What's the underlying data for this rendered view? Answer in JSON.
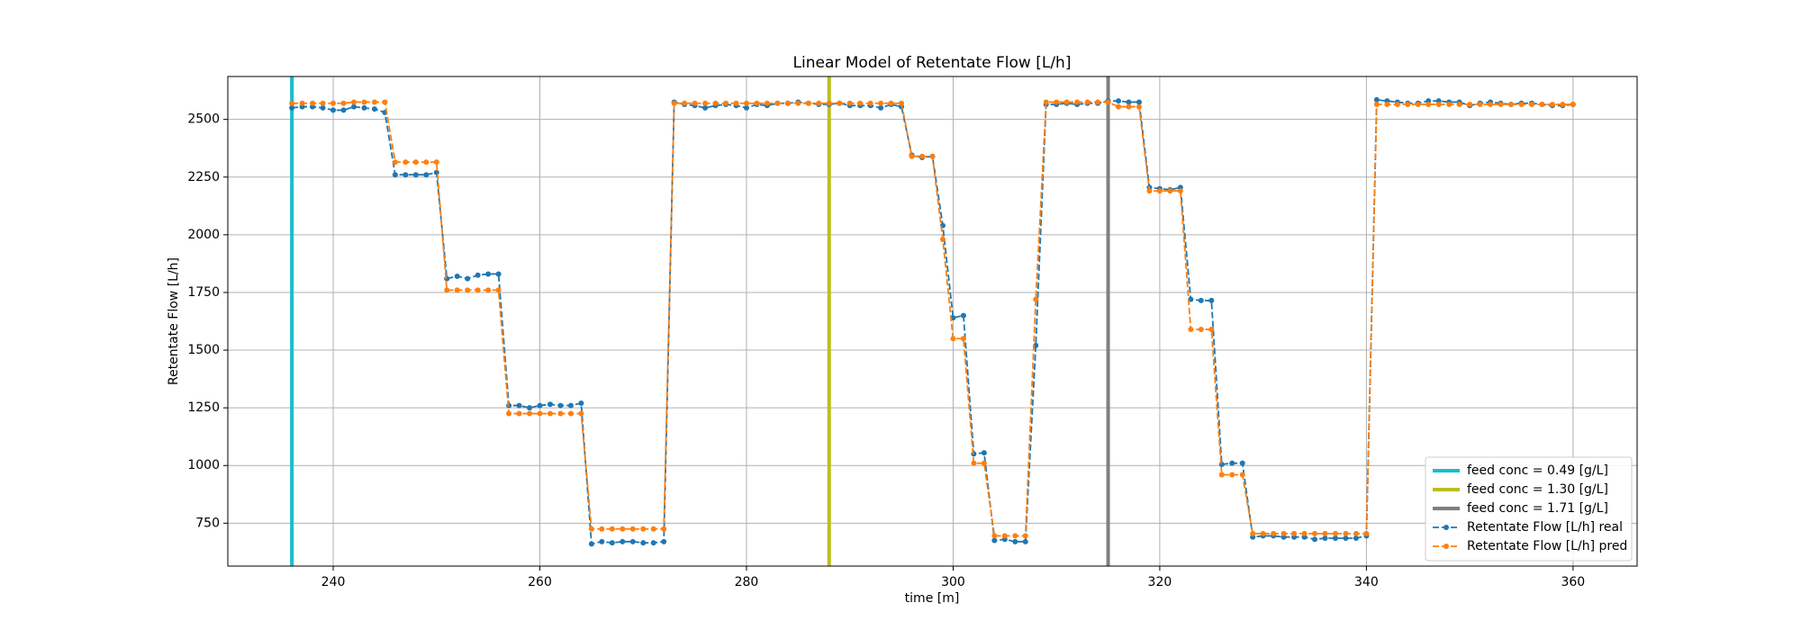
{
  "chart_data": {
    "type": "line",
    "title": "Linear Model of Retentate Flow [L/h]",
    "xlabel": "time [m]",
    "ylabel": "Retentate Flow [L/h]",
    "x": [
      236,
      237,
      238,
      239,
      240,
      241,
      242,
      243,
      244,
      245,
      246,
      247,
      248,
      249,
      250,
      251,
      252,
      253,
      254,
      255,
      256,
      257,
      258,
      259,
      260,
      261,
      262,
      263,
      264,
      265,
      266,
      267,
      268,
      269,
      270,
      271,
      272,
      273,
      274,
      275,
      276,
      277,
      278,
      279,
      280,
      281,
      282,
      283,
      284,
      285,
      286,
      287,
      288,
      289,
      290,
      291,
      292,
      293,
      294,
      295,
      296,
      297,
      298,
      299,
      300,
      301,
      302,
      303,
      304,
      305,
      306,
      307,
      308,
      309,
      310,
      311,
      312,
      313,
      314,
      315,
      316,
      317,
      318,
      319,
      320,
      321,
      322,
      323,
      324,
      325,
      326,
      327,
      328,
      329,
      330,
      331,
      332,
      333,
      334,
      335,
      336,
      337,
      338,
      339,
      340,
      341,
      342,
      343,
      344,
      345,
      346,
      347,
      348,
      349,
      350,
      351,
      352,
      353,
      354,
      355,
      356,
      357,
      358,
      359,
      360
    ],
    "series": [
      {
        "name": "Retentate Flow [L/h] real",
        "color": "#1f77b4",
        "values": [
          2550,
          2555,
          2555,
          2550,
          2540,
          2540,
          2555,
          2550,
          2545,
          2530,
          2260,
          2260,
          2260,
          2260,
          2270,
          1810,
          1820,
          1810,
          1825,
          1830,
          1830,
          1260,
          1260,
          1250,
          1260,
          1265,
          1260,
          1260,
          1270,
          660,
          670,
          665,
          670,
          670,
          665,
          665,
          670,
          2575,
          2565,
          2560,
          2550,
          2560,
          2565,
          2560,
          2550,
          2565,
          2560,
          2570,
          2570,
          2575,
          2570,
          2565,
          2565,
          2570,
          2560,
          2560,
          2560,
          2550,
          2565,
          2555,
          2345,
          2335,
          2340,
          2040,
          1640,
          1650,
          1050,
          1055,
          675,
          680,
          670,
          670,
          1520,
          2565,
          2565,
          2570,
          2565,
          2570,
          2570,
          2580,
          2580,
          2575,
          2575,
          2205,
          2200,
          2195,
          2205,
          1720,
          1715,
          1715,
          1005,
          1010,
          1010,
          690,
          695,
          695,
          690,
          690,
          690,
          680,
          685,
          685,
          685,
          685,
          695,
          2585,
          2580,
          2575,
          2570,
          2570,
          2580,
          2580,
          2575,
          2575,
          2560,
          2570,
          2575,
          2570,
          2565,
          2570,
          2570,
          2565,
          2560,
          2560,
          2565
        ]
      },
      {
        "name": "Retentate Flow [L/h] pred",
        "color": "#ff7f0e",
        "values": [
          2570,
          2570,
          2570,
          2570,
          2570,
          2570,
          2575,
          2575,
          2575,
          2575,
          2315,
          2315,
          2315,
          2315,
          2315,
          1760,
          1760,
          1760,
          1760,
          1760,
          1760,
          1225,
          1225,
          1225,
          1225,
          1225,
          1225,
          1225,
          1225,
          725,
          725,
          725,
          725,
          725,
          725,
          725,
          725,
          2570,
          2570,
          2570,
          2570,
          2570,
          2570,
          2570,
          2570,
          2570,
          2570,
          2570,
          2570,
          2570,
          2570,
          2570,
          2570,
          2570,
          2570,
          2570,
          2570,
          2570,
          2570,
          2570,
          2340,
          2340,
          2340,
          1980,
          1550,
          1550,
          1010,
          1010,
          695,
          695,
          695,
          695,
          1720,
          2575,
          2575,
          2575,
          2575,
          2575,
          2575,
          2575,
          2555,
          2555,
          2555,
          2190,
          2190,
          2190,
          2190,
          1590,
          1590,
          1590,
          960,
          960,
          960,
          705,
          705,
          705,
          705,
          705,
          705,
          705,
          705,
          705,
          705,
          705,
          705,
          2565,
          2565,
          2565,
          2565,
          2565,
          2565,
          2565,
          2565,
          2565,
          2565,
          2565,
          2565,
          2565,
          2565,
          2565,
          2565,
          2565,
          2565,
          2565,
          2565
        ]
      }
    ],
    "vlines": [
      {
        "name": "feed conc = 0.49 [g/L]",
        "color": "#17becf",
        "x": 236
      },
      {
        "name": "feed conc = 1.30 [g/L]",
        "color": "#bcbd22",
        "x": 288
      },
      {
        "name": "feed conc = 1.71 [g/L]",
        "color": "#7f7f7f",
        "x": 315
      }
    ],
    "xlim": [
      229.8,
      366.2
    ],
    "xticks": [
      240,
      260,
      280,
      300,
      320,
      340,
      360
    ],
    "ylim": [
      564,
      2686
    ],
    "yticks": [
      750,
      1000,
      1250,
      1500,
      1750,
      2000,
      2250,
      2500
    ],
    "grid": true,
    "legend": "lower right"
  }
}
